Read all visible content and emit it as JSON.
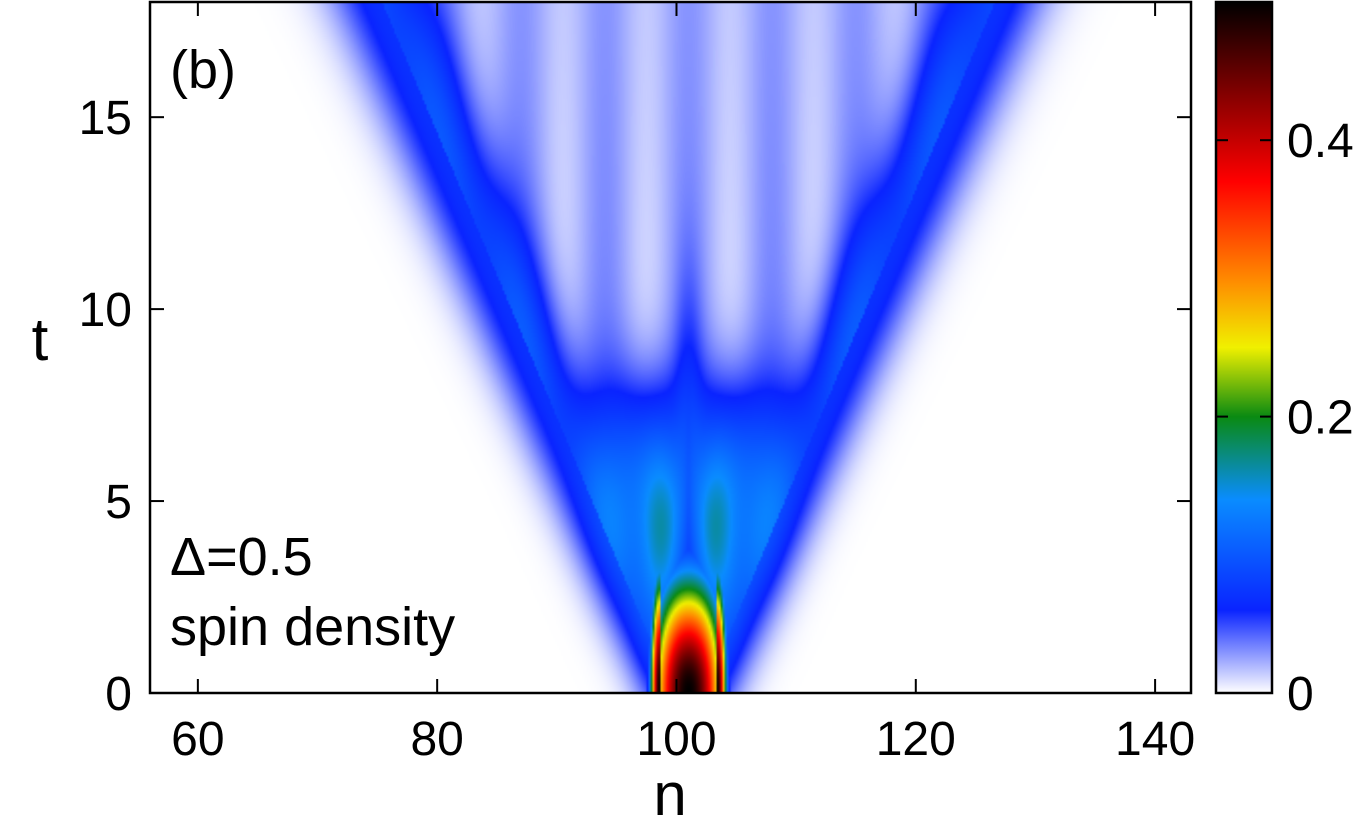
{
  "chart_data": {
    "type": "heatmap",
    "panel_label": "(b)",
    "xlabel": "n",
    "ylabel": "t",
    "xlim": [
      56,
      143
    ],
    "ylim": [
      0,
      18
    ],
    "xticks": [
      60,
      80,
      100,
      120,
      140
    ],
    "xtick_labels": [
      "60",
      "80",
      "100",
      "120",
      "140"
    ],
    "yticks": [
      0,
      5,
      10,
      15
    ],
    "ytick_labels": [
      "0",
      "5",
      "10",
      "15"
    ],
    "colorbar": {
      "range": [
        0,
        0.5
      ],
      "ticks": [
        0,
        0.2,
        0.4
      ],
      "tick_labels": [
        "0",
        "0.2",
        "0.4"
      ],
      "colormap_stops": [
        {
          "v": 0.0,
          "color": "#ffffff"
        },
        {
          "v": 0.06,
          "color": "#0a24ff"
        },
        {
          "v": 0.14,
          "color": "#0a8cff"
        },
        {
          "v": 0.2,
          "color": "#0a8a12"
        },
        {
          "v": 0.25,
          "color": "#f0f000"
        },
        {
          "v": 0.3,
          "color": "#ff8800"
        },
        {
          "v": 0.37,
          "color": "#ff0000"
        },
        {
          "v": 0.43,
          "color": "#8a0000"
        },
        {
          "v": 0.5,
          "color": "#000000"
        }
      ]
    },
    "annotations": [
      "Δ=0.5",
      "spin density"
    ],
    "field_description": {
      "center_n": 101,
      "initial_value_t0": 0.5,
      "light_cone_speed": 1.35,
      "front_peak_value": 0.07
    }
  }
}
